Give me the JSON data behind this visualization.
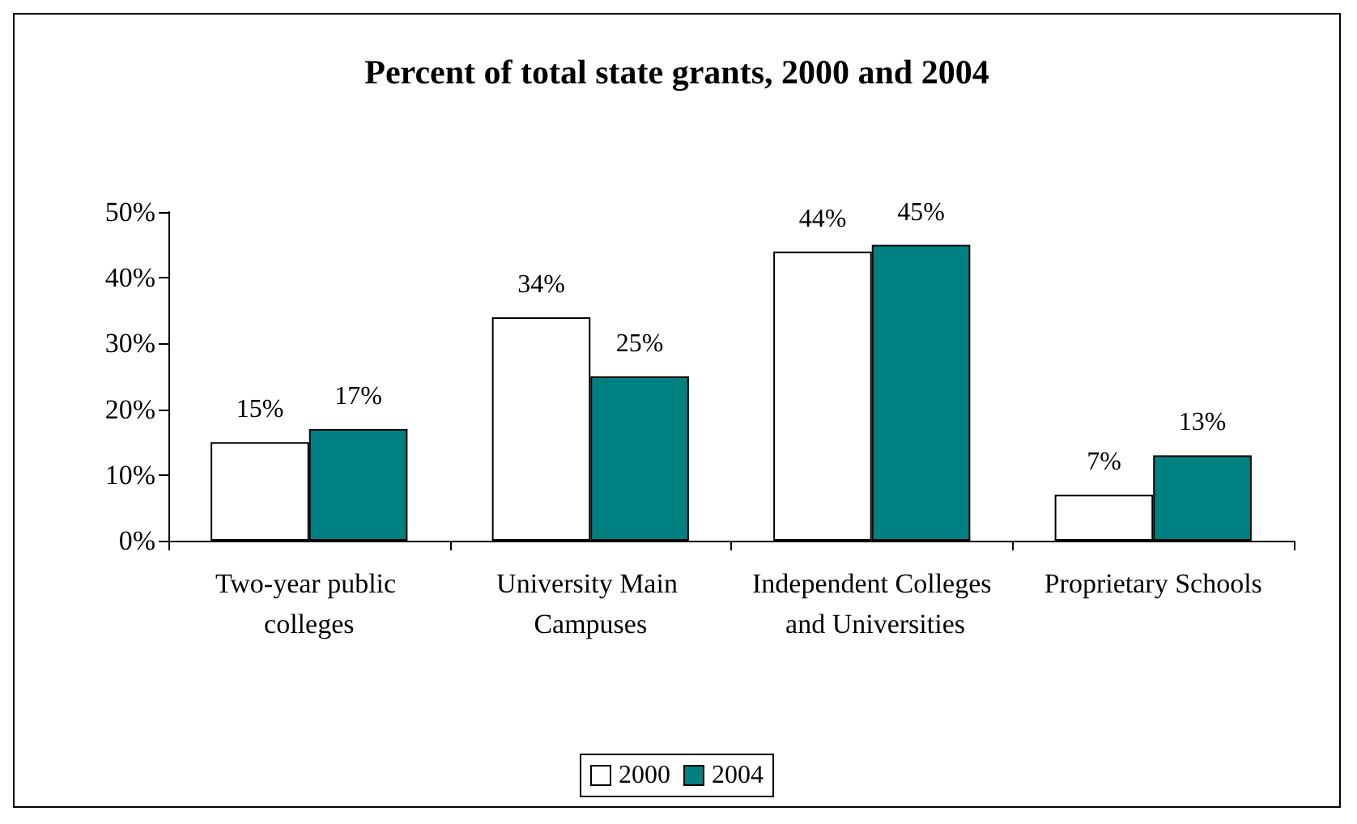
{
  "chart_data": {
    "type": "bar",
    "title": "Percent of total state grants, 2000 and 2004",
    "categories": [
      "Two-year public colleges",
      "University Main Campuses",
      "Independent Colleges and Universities",
      "Proprietary Schools"
    ],
    "series": [
      {
        "name": "2000",
        "color": "#ffffff",
        "values": [
          15,
          34,
          44,
          7
        ],
        "value_labels": [
          "15%",
          "34%",
          "44%",
          "7%"
        ]
      },
      {
        "name": "2004",
        "color": "#008080",
        "values": [
          17,
          25,
          45,
          13
        ],
        "value_labels": [
          "17%",
          "25%",
          "45%",
          "13%"
        ]
      }
    ],
    "ylim": [
      0,
      50
    ],
    "yticks": [
      {
        "value": 0,
        "label": "0%"
      },
      {
        "value": 10,
        "label": "10%"
      },
      {
        "value": 20,
        "label": "20%"
      },
      {
        "value": 30,
        "label": "30%"
      },
      {
        "value": 40,
        "label": "40%"
      },
      {
        "value": 50,
        "label": "50%"
      }
    ],
    "grid": false,
    "legend": "bottom"
  }
}
